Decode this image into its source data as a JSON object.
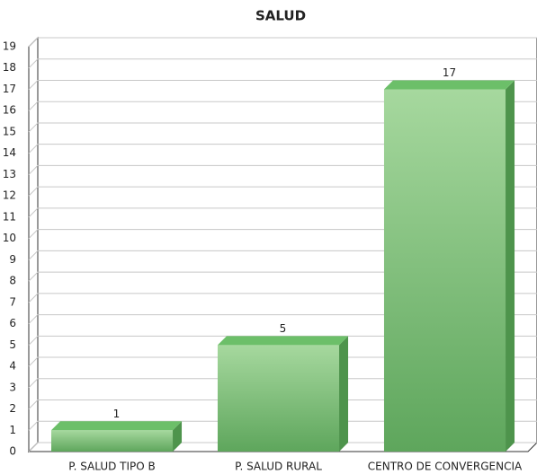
{
  "chart_data": {
    "type": "bar3d",
    "title": "SALUD",
    "categories": [
      "P. SALUD TIPO B",
      "P. SALUD RURAL",
      "CENTRO DE CONVERGENCIA"
    ],
    "values": [
      1,
      5,
      17
    ],
    "color": "#5fae5f",
    "ylim": [
      0,
      19
    ],
    "yticks": [
      0,
      1,
      2,
      3,
      4,
      5,
      6,
      7,
      8,
      9,
      10,
      11,
      12,
      13,
      14,
      15,
      16,
      17,
      18,
      19
    ],
    "grid": true
  }
}
